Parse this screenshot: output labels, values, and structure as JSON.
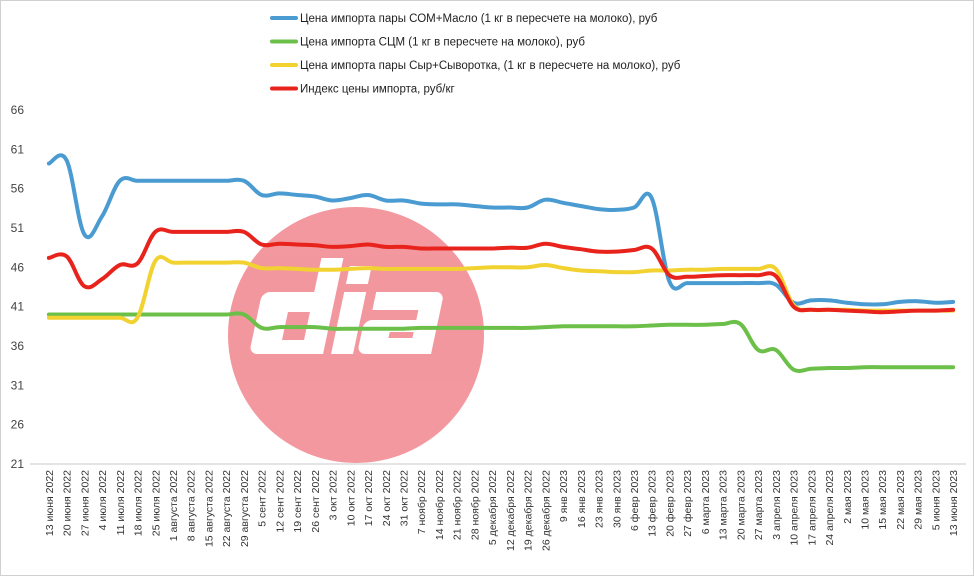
{
  "chart_data": {
    "type": "line",
    "title": "",
    "xlabel": "",
    "ylabel": "",
    "ylim": [
      21,
      66
    ],
    "yticks": [
      "21",
      "26",
      "31",
      "36",
      "41",
      "46",
      "51",
      "56",
      "61",
      "66"
    ],
    "grid": false,
    "legend_position": "top",
    "categories": [
      "13 июня 2022",
      "20 июня 2022",
      "27 июня 2022",
      "4 июля 2022",
      "11 июля 2022",
      "18 июля 2022",
      "25 июля 2022",
      "1 августа 2022",
      "8 августа 2022",
      "15 августа 2022",
      "22 августа 2022",
      "29 августа 2022",
      "5 сент 2022",
      "12 сент 2022",
      "19 сент 2022",
      "26 сент 2022",
      "3 окт 2022",
      "10 окт 2022",
      "17 окт 2022",
      "24 окт 2022",
      "31 окт 2022",
      "7 ноябр 2022",
      "14 ноябр 2022",
      "21 ноябр 2022",
      "28 ноябр 2022",
      "5 декабря 2022",
      "12 декабря 2022",
      "19 декабря 2022",
      "26 декабря 2022",
      "9 янв 2023",
      "16 янв 2023",
      "23 янв 2023",
      "30 янв 2023",
      "6 февр 2023",
      "13 февр 2023",
      "20 февр 2023",
      "27 февр 2023",
      "6 марта 2023",
      "13 марта 2023",
      "20 марта 2023",
      "27 марта 2023",
      "3 апреля 2023",
      "10 апреля 2023",
      "17 апреля 2023",
      "24 апреля 2023",
      "2 мая 2023",
      "10 мая 2023",
      "15 мая 2023",
      "22 мая 2023",
      "29 мая 2023",
      "5 июня 2023",
      "13 июня 2023"
    ],
    "series": [
      {
        "name": "Цена импорта пары СОМ+Масло (1 кг в пересчете на молоко), руб",
        "color": "#4a9bd1",
        "values": [
          59.2,
          59.6,
          50.2,
          52.5,
          57.0,
          57.0,
          57.0,
          57.0,
          57.0,
          57.0,
          57.0,
          57.0,
          55.2,
          55.4,
          55.2,
          55.0,
          54.5,
          54.8,
          55.2,
          54.5,
          54.5,
          54.1,
          54.0,
          54.0,
          53.8,
          53.6,
          53.6,
          53.6,
          54.6,
          54.2,
          53.8,
          53.4,
          53.3,
          53.6,
          54.8,
          44.2,
          44.0,
          44.0,
          44.0,
          44.0,
          44.0,
          43.8,
          41.5,
          41.8,
          41.8,
          41.5,
          41.3,
          41.3,
          41.6,
          41.7,
          41.5,
          41.6
        ]
      },
      {
        "name": "Цена импорта СЦМ (1 кг в пересчете на молоко), руб",
        "color": "#6cc04a",
        "values": [
          40.0,
          40.0,
          40.0,
          40.0,
          40.0,
          40.0,
          40.0,
          40.0,
          40.0,
          40.0,
          40.0,
          40.0,
          38.3,
          38.4,
          38.4,
          38.4,
          38.2,
          38.2,
          38.2,
          38.2,
          38.2,
          38.3,
          38.3,
          38.3,
          38.3,
          38.3,
          38.3,
          38.3,
          38.4,
          38.5,
          38.5,
          38.5,
          38.5,
          38.5,
          38.6,
          38.7,
          38.7,
          38.7,
          38.8,
          38.8,
          35.5,
          35.5,
          33.0,
          33.1,
          33.2,
          33.2,
          33.3,
          33.3,
          33.3,
          33.3,
          33.3,
          33.3
        ]
      },
      {
        "name": "Цена импорта пары Сыр+Сыворотка, (1 кг в пересчете на молоко), руб",
        "color": "#f2d230",
        "values": [
          39.6,
          39.6,
          39.6,
          39.6,
          39.6,
          39.6,
          46.8,
          46.6,
          46.6,
          46.6,
          46.6,
          46.6,
          45.9,
          45.9,
          45.8,
          45.7,
          45.7,
          45.8,
          45.9,
          45.8,
          45.8,
          45.8,
          45.8,
          45.8,
          45.9,
          46.0,
          46.0,
          46.0,
          46.3,
          45.9,
          45.6,
          45.5,
          45.4,
          45.4,
          45.6,
          45.6,
          45.7,
          45.7,
          45.8,
          45.8,
          45.8,
          45.8,
          41.2,
          40.6,
          40.6,
          40.6,
          40.5,
          40.5,
          40.5,
          40.5,
          40.5,
          40.5
        ]
      },
      {
        "name": "Индекс цены импорта, руб/кг",
        "color": "#e8231c",
        "values": [
          47.2,
          47.4,
          43.6,
          44.5,
          46.3,
          46.5,
          50.5,
          50.5,
          50.5,
          50.5,
          50.5,
          50.5,
          48.9,
          49.0,
          48.9,
          48.8,
          48.6,
          48.7,
          48.9,
          48.6,
          48.6,
          48.4,
          48.4,
          48.4,
          48.4,
          48.4,
          48.5,
          48.5,
          49.0,
          48.6,
          48.3,
          48.0,
          48.0,
          48.2,
          48.4,
          45.0,
          44.8,
          44.9,
          45.0,
          45.0,
          45.0,
          44.9,
          41.0,
          40.6,
          40.6,
          40.5,
          40.4,
          40.3,
          40.4,
          40.5,
          40.5,
          40.6
        ]
      }
    ]
  }
}
